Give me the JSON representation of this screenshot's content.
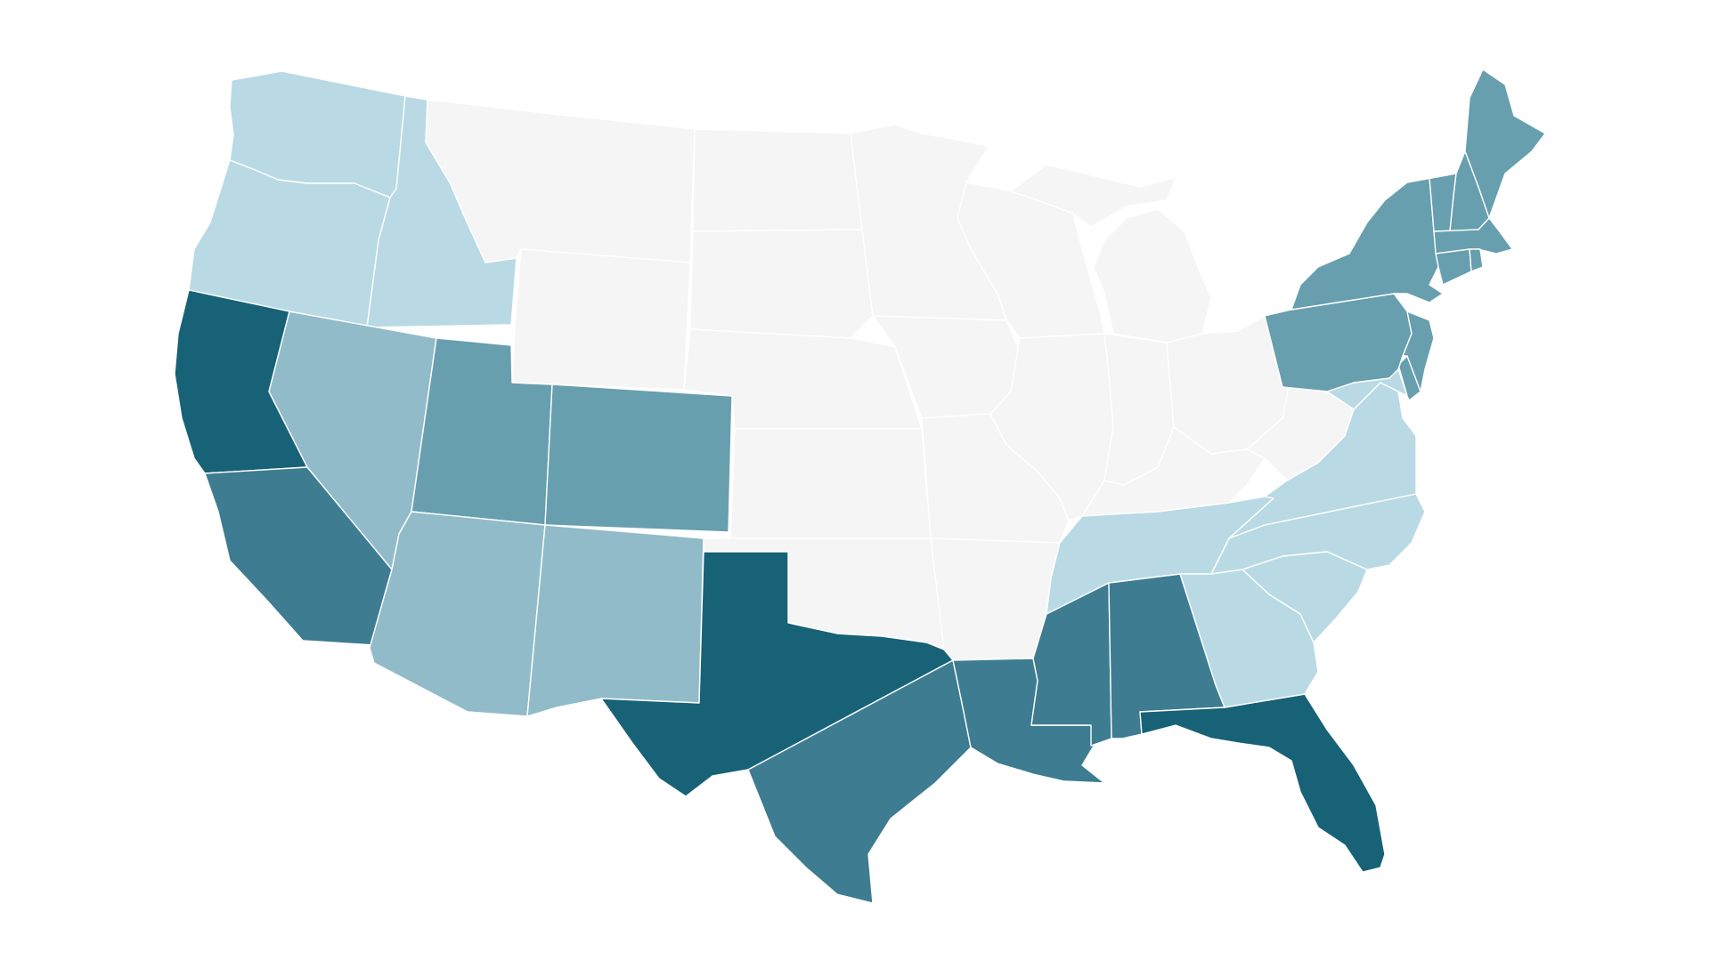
{
  "map": {
    "type": "choropleth",
    "background": "#ffffff",
    "border_color": "#ffffff",
    "palette": {
      "c0": "#f5f5f5",
      "c1": "#b9dae4",
      "c2": "#92bbc9",
      "c3": "#679fae",
      "c4": "#3e7c91",
      "c5": "#176277"
    },
    "regions": [
      {
        "id": "washington",
        "class": "c1"
      },
      {
        "id": "oregon",
        "class": "c1"
      },
      {
        "id": "idaho",
        "class": "c1"
      },
      {
        "id": "montana",
        "class": "c0"
      },
      {
        "id": "wyoming",
        "class": "c0"
      },
      {
        "id": "north-dakota",
        "class": "c0"
      },
      {
        "id": "south-dakota",
        "class": "c0"
      },
      {
        "id": "nebraska",
        "class": "c0"
      },
      {
        "id": "kansas",
        "class": "c0"
      },
      {
        "id": "oklahoma",
        "class": "c0"
      },
      {
        "id": "minnesota",
        "class": "c0"
      },
      {
        "id": "iowa",
        "class": "c0"
      },
      {
        "id": "missouri",
        "class": "c0"
      },
      {
        "id": "arkansas",
        "class": "c0"
      },
      {
        "id": "wisconsin",
        "class": "c0"
      },
      {
        "id": "illinois",
        "class": "c0"
      },
      {
        "id": "michigan-lower",
        "class": "c0"
      },
      {
        "id": "michigan-upper",
        "class": "c0"
      },
      {
        "id": "indiana",
        "class": "c0"
      },
      {
        "id": "ohio",
        "class": "c0"
      },
      {
        "id": "kentucky",
        "class": "c0"
      },
      {
        "id": "west-virginia",
        "class": "c0"
      },
      {
        "id": "california-north",
        "class": "c5"
      },
      {
        "id": "california-south",
        "class": "c4"
      },
      {
        "id": "nevada",
        "class": "c2"
      },
      {
        "id": "utah",
        "class": "c3"
      },
      {
        "id": "colorado",
        "class": "c3"
      },
      {
        "id": "arizona",
        "class": "c2"
      },
      {
        "id": "new-mexico",
        "class": "c2"
      },
      {
        "id": "texas-west",
        "class": "c5"
      },
      {
        "id": "texas-east",
        "class": "c4"
      },
      {
        "id": "louisiana",
        "class": "c4"
      },
      {
        "id": "mississippi",
        "class": "c4"
      },
      {
        "id": "alabama",
        "class": "c4"
      },
      {
        "id": "florida",
        "class": "c5"
      },
      {
        "id": "georgia",
        "class": "c1"
      },
      {
        "id": "south-carolina",
        "class": "c1"
      },
      {
        "id": "north-carolina",
        "class": "c1"
      },
      {
        "id": "tennessee",
        "class": "c1"
      },
      {
        "id": "virginia",
        "class": "c1"
      },
      {
        "id": "maryland",
        "class": "c1"
      },
      {
        "id": "delaware",
        "class": "c3"
      },
      {
        "id": "pennsylvania",
        "class": "c3"
      },
      {
        "id": "new-jersey",
        "class": "c3"
      },
      {
        "id": "new-york",
        "class": "c3"
      },
      {
        "id": "vermont",
        "class": "c3"
      },
      {
        "id": "new-hampshire",
        "class": "c3"
      },
      {
        "id": "maine",
        "class": "c3"
      },
      {
        "id": "massachusetts",
        "class": "c3"
      },
      {
        "id": "connecticut",
        "class": "c3"
      },
      {
        "id": "rhode-island",
        "class": "c3"
      }
    ]
  }
}
